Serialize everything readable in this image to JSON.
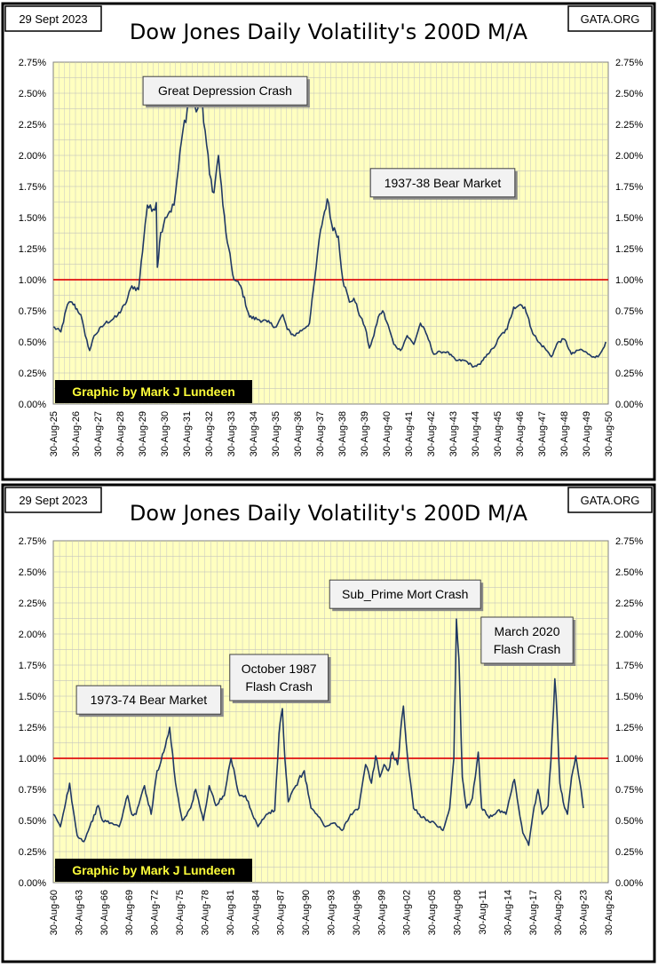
{
  "chart_data": [
    {
      "type": "line",
      "title": "Dow Jones Daily Volatility's 200D M/A",
      "date_label": "29 Sept 2023",
      "source_label": "GATA.ORG",
      "credit": "Graphic by Mark J Lundeen",
      "ylim": [
        0,
        2.75
      ],
      "y_ticks": [
        "0.00%",
        "0.25%",
        "0.50%",
        "0.75%",
        "1.00%",
        "1.25%",
        "1.50%",
        "1.75%",
        "2.00%",
        "2.25%",
        "2.50%",
        "2.75%"
      ],
      "x_start_year": 1925.66,
      "x_end_year": 1950.66,
      "x_ticks": [
        "30-Aug-25",
        "30-Aug-26",
        "30-Aug-27",
        "30-Aug-28",
        "30-Aug-29",
        "30-Aug-30",
        "30-Aug-31",
        "30-Aug-32",
        "30-Aug-33",
        "30-Aug-34",
        "30-Aug-35",
        "30-Aug-36",
        "30-Aug-37",
        "30-Aug-38",
        "30-Aug-39",
        "30-Aug-40",
        "30-Aug-41",
        "30-Aug-42",
        "30-Aug-43",
        "30-Aug-44",
        "30-Aug-45",
        "30-Aug-46",
        "30-Aug-47",
        "30-Aug-48",
        "30-Aug-49",
        "30-Aug-50"
      ],
      "reference_line": 1.0,
      "annotations": [
        {
          "text": [
            "Great Depression Crash"
          ],
          "x": 1933.4,
          "y": 2.52
        },
        {
          "text": [
            "1937-38 Bear Market"
          ],
          "x": 1943.2,
          "y": 1.78
        }
      ],
      "series": [
        {
          "name": "Dow Jones Daily Volatility 200D M/A",
          "x": [
            1925.66,
            1926.0,
            1926.3,
            1926.5,
            1926.9,
            1927.1,
            1927.3,
            1927.5,
            1928.0,
            1928.5,
            1928.9,
            1929.2,
            1929.5,
            1929.8,
            1929.9,
            1930.1,
            1930.3,
            1930.35,
            1930.5,
            1930.7,
            1930.9,
            1931.1,
            1931.3,
            1931.5,
            1931.7,
            1931.9,
            1932.1,
            1932.3,
            1932.5,
            1932.7,
            1932.9,
            1933.1,
            1933.3,
            1933.5,
            1933.8,
            1934.1,
            1934.5,
            1934.9,
            1935.3,
            1935.7,
            1936.0,
            1936.2,
            1936.5,
            1936.9,
            1937.2,
            1937.5,
            1937.7,
            1938.0,
            1938.2,
            1938.5,
            1938.7,
            1939.0,
            1939.2,
            1939.5,
            1939.7,
            1939.9,
            1940.1,
            1940.3,
            1940.5,
            1940.8,
            1941.0,
            1941.3,
            1941.6,
            1941.9,
            1942.2,
            1942.5,
            1942.8,
            1943.1,
            1943.4,
            1943.8,
            1944.2,
            1944.6,
            1944.9,
            1945.2,
            1945.5,
            1945.8,
            1946.1,
            1946.4,
            1946.7,
            1946.9,
            1947.2,
            1947.5,
            1947.8,
            1948.1,
            1948.4,
            1948.7,
            1949.0,
            1949.4,
            1949.8,
            1950.0,
            1950.2,
            1950.35,
            1950.55
          ],
          "values": [
            0.62,
            0.58,
            0.8,
            0.82,
            0.72,
            0.55,
            0.43,
            0.55,
            0.65,
            0.7,
            0.8,
            0.95,
            0.92,
            1.45,
            1.6,
            1.55,
            1.62,
            1.1,
            1.38,
            1.5,
            1.55,
            1.6,
            1.9,
            2.2,
            2.38,
            2.45,
            2.35,
            2.5,
            2.2,
            1.85,
            1.7,
            2.0,
            1.6,
            1.3,
            1.0,
            0.95,
            0.7,
            0.68,
            0.66,
            0.62,
            0.72,
            0.6,
            0.55,
            0.6,
            0.65,
            1.1,
            1.4,
            1.65,
            1.45,
            1.35,
            1.0,
            0.82,
            0.85,
            0.7,
            0.62,
            0.45,
            0.55,
            0.7,
            0.75,
            0.6,
            0.48,
            0.43,
            0.55,
            0.48,
            0.65,
            0.55,
            0.4,
            0.42,
            0.42,
            0.35,
            0.35,
            0.3,
            0.32,
            0.4,
            0.45,
            0.55,
            0.6,
            0.78,
            0.8,
            0.78,
            0.6,
            0.5,
            0.45,
            0.38,
            0.5,
            0.52,
            0.4,
            0.44,
            0.4,
            0.38,
            0.38,
            0.42,
            0.5
          ]
        }
      ]
    },
    {
      "type": "line",
      "title": "Dow Jones Daily Volatility's 200D M/A",
      "date_label": "29 Sept 2023",
      "source_label": "GATA.ORG",
      "credit": "Graphic by Mark J Lundeen",
      "ylim": [
        0,
        2.75
      ],
      "y_ticks": [
        "0.00%",
        "0.25%",
        "0.50%",
        "0.75%",
        "1.00%",
        "1.25%",
        "1.50%",
        "1.75%",
        "2.00%",
        "2.25%",
        "2.50%",
        "2.75%"
      ],
      "x_start_year": 1960.66,
      "x_end_year": 2026.66,
      "x_ticks": [
        "30-Aug-60",
        "30-Aug-63",
        "30-Aug-66",
        "30-Aug-69",
        "30-Aug-72",
        "30-Aug-75",
        "30-Aug-78",
        "30-Aug-81",
        "30-Aug-84",
        "30-Aug-87",
        "30-Aug-90",
        "30-Aug-93",
        "30-Aug-96",
        "30-Aug-99",
        "30-Aug-02",
        "30-Aug-05",
        "30-Aug-08",
        "30-Aug-11",
        "30-Aug-14",
        "30-Aug-17",
        "30-Aug-20",
        "30-Aug-23",
        "30-Aug-26"
      ],
      "reference_line": 1.0,
      "annotations": [
        {
          "text": [
            "1973-74 Bear Market"
          ],
          "x": 1972.0,
          "y": 1.47
        },
        {
          "text": [
            "October 1987",
            "Flash Crash"
          ],
          "x": 1987.5,
          "y": 1.65
        },
        {
          "text": [
            "Sub_Prime Mort Crash"
          ],
          "x": 2002.5,
          "y": 2.32
        },
        {
          "text": [
            "March 2020",
            "Flash Crash"
          ],
          "x": 2017.0,
          "y": 1.95
        }
      ],
      "series": [
        {
          "name": "Dow Jones Daily Volatility 200D M/A",
          "x": [
            1960.66,
            1961.5,
            1962.0,
            1962.6,
            1963.0,
            1963.5,
            1964.3,
            1965.0,
            1966.0,
            1966.5,
            1967.5,
            1968.5,
            1969.5,
            1970.0,
            1970.5,
            1971.5,
            1972.3,
            1973.0,
            1973.8,
            1974.5,
            1975.2,
            1976.0,
            1977.0,
            1977.6,
            1978.5,
            1979.2,
            1980.0,
            1981.0,
            1981.8,
            1982.3,
            1982.8,
            1983.5,
            1984.2,
            1985.0,
            1986.0,
            1987.0,
            1987.5,
            1987.9,
            1988.2,
            1988.6,
            1989.5,
            1990.5,
            1991.3,
            1992.0,
            1993.0,
            1994.0,
            1995.0,
            1996.0,
            1997.0,
            1997.8,
            1998.5,
            1999.0,
            1999.5,
            2000.0,
            2000.5,
            2001.0,
            2001.6,
            2002.3,
            2002.8,
            2003.5,
            2004.2,
            2005.0,
            2006.0,
            2007.0,
            2007.8,
            2008.3,
            2008.6,
            2008.9,
            2009.3,
            2009.8,
            2010.5,
            2011.2,
            2011.6,
            2012.0,
            2012.5,
            2013.5,
            2014.5,
            2015.5,
            2016.0,
            2016.5,
            2017.2,
            2017.7,
            2018.3,
            2018.8,
            2019.5,
            2020.0,
            2020.3,
            2020.6,
            2020.9,
            2021.3,
            2021.8,
            2022.3,
            2022.8,
            2023.3,
            2023.7
          ],
          "values": [
            0.55,
            0.45,
            0.6,
            0.8,
            0.6,
            0.38,
            0.33,
            0.45,
            0.62,
            0.5,
            0.48,
            0.45,
            0.7,
            0.55,
            0.55,
            0.78,
            0.55,
            0.9,
            1.05,
            1.25,
            0.8,
            0.5,
            0.6,
            0.75,
            0.5,
            0.78,
            0.62,
            0.7,
            1.0,
            0.85,
            0.7,
            0.7,
            0.58,
            0.45,
            0.55,
            0.58,
            1.2,
            1.4,
            1.0,
            0.65,
            0.78,
            0.9,
            0.6,
            0.55,
            0.45,
            0.48,
            0.42,
            0.55,
            0.6,
            0.95,
            0.8,
            1.02,
            0.85,
            0.95,
            0.9,
            1.05,
            0.95,
            1.42,
            1.0,
            0.6,
            0.55,
            0.5,
            0.48,
            0.42,
            0.6,
            1.0,
            2.12,
            1.8,
            0.85,
            0.6,
            0.68,
            1.05,
            0.6,
            0.58,
            0.52,
            0.58,
            0.55,
            0.83,
            0.6,
            0.4,
            0.3,
            0.55,
            0.75,
            0.55,
            0.62,
            1.2,
            1.64,
            1.3,
            0.8,
            0.65,
            0.55,
            0.85,
            1.02,
            0.8,
            0.6
          ]
        }
      ]
    }
  ]
}
